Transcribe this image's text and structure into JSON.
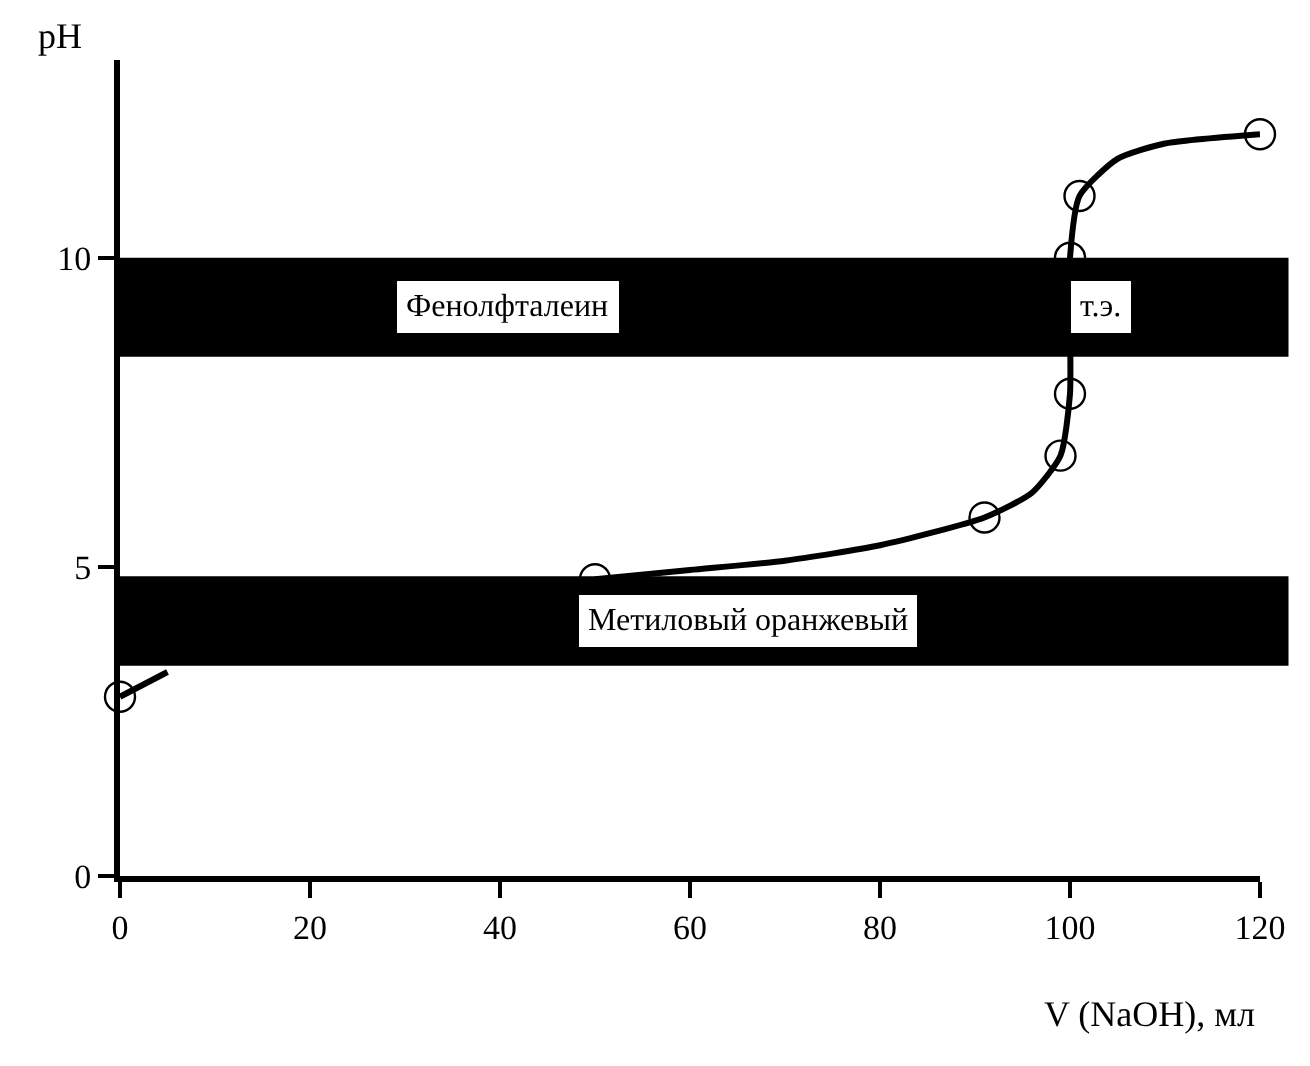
{
  "chart_data": {
    "type": "line",
    "xlabel": "V (NaOH), мл",
    "ylabel": "pH",
    "xlim": [
      0,
      120
    ],
    "xticks": [
      0,
      20,
      40,
      60,
      80,
      100,
      120
    ],
    "ylim": [
      0,
      13.2
    ],
    "yticks": [
      0,
      5,
      10
    ],
    "series": [
      {
        "color": "#000000",
        "marker": "none",
        "line_style": "solid",
        "x": [
          0,
          5,
          10,
          20,
          30,
          40,
          50,
          60,
          70,
          80,
          91,
          96,
          99,
          100,
          100,
          101,
          105,
          110,
          120
        ],
        "values": [
          2.9,
          3.3,
          null,
          null,
          null,
          null,
          4.8,
          4.95,
          5.1,
          5.35,
          5.8,
          6.2,
          6.8,
          7.8,
          10,
          11,
          11.6,
          11.85,
          12.0
        ]
      },
      {
        "type": "scatter",
        "color": "#000000",
        "marker": "circle",
        "x": [
          0,
          50,
          91,
          99,
          100,
          100,
          101,
          120
        ],
        "values": [
          2.9,
          4.8,
          5.8,
          6.8,
          7.8,
          10,
          11,
          12.0
        ]
      }
    ],
    "bands": [
      {
        "axis": "y",
        "from": 8.4,
        "to": 10,
        "label": "Фенолфталеин",
        "color": "#000000"
      },
      {
        "axis": "y",
        "from": 3.4,
        "to": 4.85,
        "label": "Метиловый оранжевый",
        "color": "#000000"
      }
    ],
    "annotations": [
      {
        "text": "т.э.",
        "x": 100,
        "y": 9.2
      }
    ]
  }
}
